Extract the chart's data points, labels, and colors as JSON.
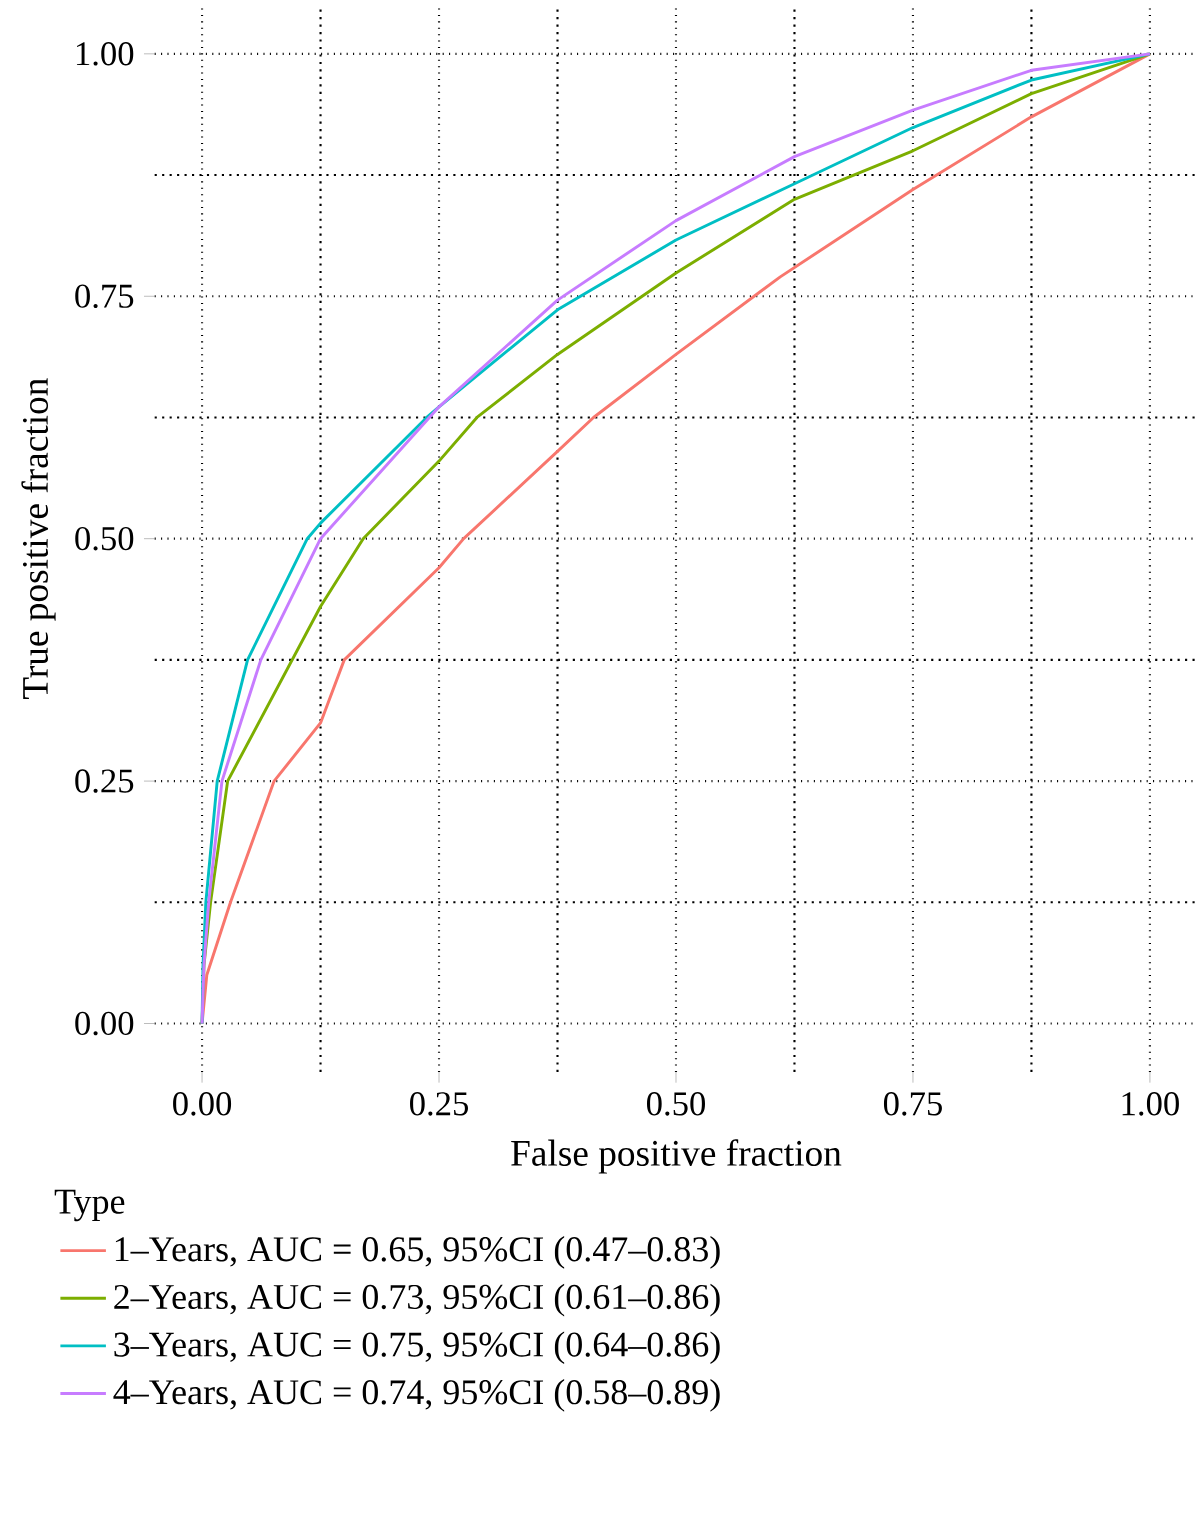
{
  "chart_data": {
    "type": "line",
    "xlabel": "False positive fraction",
    "ylabel": "True positive fraction",
    "legend_title": "Type",
    "legend": "bottom",
    "grid": true,
    "marker": "none",
    "line_style": "solid",
    "xlim": [
      -0.05,
      1.05
    ],
    "ylim": [
      -0.05,
      1.05
    ],
    "xticks": [
      {
        "value": 0,
        "label": "0.00"
      },
      {
        "value": 0.25,
        "label": "0.25"
      },
      {
        "value": 0.5,
        "label": "0.50"
      },
      {
        "value": 0.75,
        "label": "0.75"
      },
      {
        "value": 1,
        "label": "1.00"
      }
    ],
    "yticks": [
      {
        "value": 0,
        "label": "0.00"
      },
      {
        "value": 0.25,
        "label": "0.25"
      },
      {
        "value": 0.5,
        "label": "0.50"
      },
      {
        "value": 0.75,
        "label": "0.75"
      },
      {
        "value": 1,
        "label": "1.00"
      }
    ],
    "series": [
      {
        "name": "1–Years, AUC = 0.65, 95%CI (0.47–0.83)",
        "color": "#f8766d",
        "x": [
          0,
          0.005,
          0.03,
          0.076,
          0.125,
          0.15,
          0.25,
          0.276,
          0.375,
          0.413,
          0.5,
          0.61,
          0.75,
          0.875,
          1
        ],
        "values": [
          0,
          0.05,
          0.125,
          0.25,
          0.31,
          0.375,
          0.47,
          0.5,
          0.59,
          0.625,
          0.69,
          0.77,
          0.86,
          0.935,
          1
        ]
      },
      {
        "name": "2–Years, AUC = 0.73, 95%CI (0.61–0.86)",
        "color": "#7cae00",
        "x": [
          0,
          0.002,
          0.009,
          0.027,
          0.125,
          0.17,
          0.25,
          0.29,
          0.375,
          0.5,
          0.625,
          0.75,
          0.875,
          1
        ],
        "values": [
          0,
          0.06,
          0.125,
          0.25,
          0.43,
          0.5,
          0.58,
          0.625,
          0.69,
          0.774,
          0.85,
          0.9,
          0.959,
          1
        ]
      },
      {
        "name": "3–Years, AUC = 0.75, 95%CI (0.64–0.86)",
        "color": "#00bfc4",
        "x": [
          0,
          0.001,
          0.004,
          0.016,
          0.048,
          0.111,
          0.125,
          0.237,
          0.25,
          0.375,
          0.5,
          0.625,
          0.75,
          0.875,
          1
        ],
        "values": [
          0,
          0.06,
          0.125,
          0.25,
          0.375,
          0.5,
          0.516,
          0.625,
          0.636,
          0.736,
          0.808,
          0.866,
          0.924,
          0.973,
          1
        ]
      },
      {
        "name": "4–Years, AUC = 0.74, 95%CI (0.58–0.89)",
        "color": "#c77cff",
        "x": [
          0,
          0.002,
          0.007,
          0.021,
          0.062,
          0.125,
          0.25,
          0.375,
          0.5,
          0.625,
          0.75,
          0.875,
          1
        ],
        "values": [
          0,
          0.06,
          0.125,
          0.25,
          0.375,
          0.5,
          0.636,
          0.746,
          0.828,
          0.894,
          0.942,
          0.983,
          1
        ]
      }
    ]
  }
}
